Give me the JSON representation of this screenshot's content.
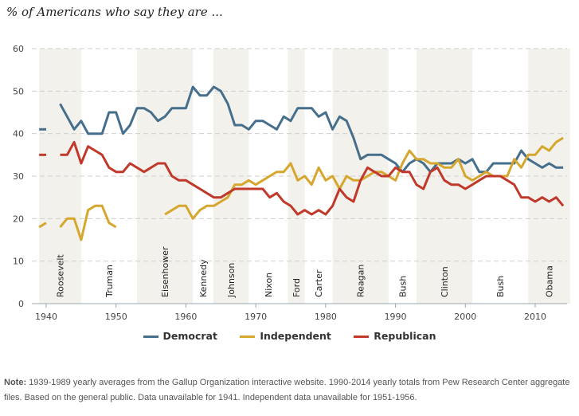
{
  "title": "% of Americans who say they are ...",
  "chart_data": {
    "type": "line",
    "title": "% of Americans who say they are ...",
    "xlabel": "",
    "ylabel": "",
    "xlim": [
      1938,
      2015
    ],
    "ylim": [
      0,
      60
    ],
    "yticks": [
      0,
      10,
      20,
      30,
      40,
      50,
      60
    ],
    "xticks": [
      1940,
      1950,
      1960,
      1970,
      1980,
      1990,
      2000,
      2010
    ],
    "grid": "horizontal-dashed",
    "legend_position": "bottom-center",
    "presidencies": [
      {
        "name": "Roosevelt",
        "start": 1939,
        "end": 1945,
        "shaded": true
      },
      {
        "name": "Truman",
        "start": 1945,
        "end": 1953,
        "shaded": false
      },
      {
        "name": "Eisenhower",
        "start": 1953,
        "end": 1961,
        "shaded": true
      },
      {
        "name": "Kennedy",
        "start": 1961,
        "end": 1963.9,
        "shaded": false
      },
      {
        "name": "Johnson",
        "start": 1963.9,
        "end": 1969,
        "shaded": true
      },
      {
        "name": "Nixon",
        "start": 1969,
        "end": 1974.6,
        "shaded": false
      },
      {
        "name": "Ford",
        "start": 1974.6,
        "end": 1977,
        "shaded": true
      },
      {
        "name": "Carter",
        "start": 1977,
        "end": 1981,
        "shaded": false
      },
      {
        "name": "Reagan",
        "start": 1981,
        "end": 1989,
        "shaded": true
      },
      {
        "name": "Bush",
        "start": 1989,
        "end": 1993,
        "shaded": false
      },
      {
        "name": "Clinton",
        "start": 1993,
        "end": 2001,
        "shaded": true
      },
      {
        "name": "Bush",
        "start": 2001,
        "end": 2009,
        "shaded": false
      },
      {
        "name": "Obama",
        "start": 2009,
        "end": 2015,
        "shaded": true
      }
    ],
    "series": [
      {
        "name": "Democrat",
        "color": "#466f8c",
        "points": [
          [
            1939,
            41
          ],
          [
            1940,
            41
          ],
          [
            1941,
            null
          ],
          [
            1942,
            47
          ],
          [
            1943,
            44
          ],
          [
            1944,
            41
          ],
          [
            1945,
            43
          ],
          [
            1946,
            40
          ],
          [
            1947,
            40
          ],
          [
            1948,
            40
          ],
          [
            1949,
            45
          ],
          [
            1950,
            45
          ],
          [
            1951,
            40
          ],
          [
            1952,
            42
          ],
          [
            1953,
            46
          ],
          [
            1954,
            46
          ],
          [
            1955,
            45
          ],
          [
            1956,
            43
          ],
          [
            1957,
            44
          ],
          [
            1958,
            46
          ],
          [
            1959,
            46
          ],
          [
            1960,
            46
          ],
          [
            1961,
            51
          ],
          [
            1962,
            49
          ],
          [
            1963,
            49
          ],
          [
            1964,
            51
          ],
          [
            1965,
            50
          ],
          [
            1966,
            47
          ],
          [
            1967,
            42
          ],
          [
            1968,
            42
          ],
          [
            1969,
            41
          ],
          [
            1970,
            43
          ],
          [
            1971,
            43
          ],
          [
            1972,
            42
          ],
          [
            1973,
            41
          ],
          [
            1974,
            44
          ],
          [
            1975,
            43
          ],
          [
            1976,
            46
          ],
          [
            1977,
            46
          ],
          [
            1978,
            46
          ],
          [
            1979,
            44
          ],
          [
            1980,
            45
          ],
          [
            1981,
            41
          ],
          [
            1982,
            44
          ],
          [
            1983,
            43
          ],
          [
            1984,
            39
          ],
          [
            1985,
            34
          ],
          [
            1986,
            35
          ],
          [
            1987,
            35
          ],
          [
            1988,
            35
          ],
          [
            1989,
            34
          ],
          [
            1990,
            33
          ],
          [
            1991,
            31
          ],
          [
            1992,
            33
          ],
          [
            1993,
            34
          ],
          [
            1994,
            33
          ],
          [
            1995,
            31
          ],
          [
            1996,
            33
          ],
          [
            1997,
            33
          ],
          [
            1998,
            33
          ],
          [
            1999,
            34
          ],
          [
            2000,
            33
          ],
          [
            2001,
            34
          ],
          [
            2002,
            31
          ],
          [
            2003,
            31
          ],
          [
            2004,
            33
          ],
          [
            2005,
            33
          ],
          [
            2006,
            33
          ],
          [
            2007,
            33
          ],
          [
            2008,
            36
          ],
          [
            2009,
            34
          ],
          [
            2010,
            33
          ],
          [
            2011,
            32
          ],
          [
            2012,
            33
          ],
          [
            2013,
            32
          ],
          [
            2014,
            32
          ]
        ]
      },
      {
        "name": "Independent",
        "color": "#d6a72e",
        "points": [
          [
            1939,
            18
          ],
          [
            1940,
            19
          ],
          [
            1941,
            null
          ],
          [
            1942,
            18
          ],
          [
            1943,
            20
          ],
          [
            1944,
            20
          ],
          [
            1945,
            15
          ],
          [
            1946,
            22
          ],
          [
            1947,
            23
          ],
          [
            1948,
            23
          ],
          [
            1949,
            19
          ],
          [
            1950,
            18
          ],
          [
            1951,
            null
          ],
          [
            1952,
            null
          ],
          [
            1953,
            null
          ],
          [
            1954,
            null
          ],
          [
            1955,
            null
          ],
          [
            1956,
            null
          ],
          [
            1957,
            21
          ],
          [
            1958,
            22
          ],
          [
            1959,
            23
          ],
          [
            1960,
            23
          ],
          [
            1961,
            20
          ],
          [
            1962,
            22
          ],
          [
            1963,
            23
          ],
          [
            1964,
            23
          ],
          [
            1965,
            24
          ],
          [
            1966,
            25
          ],
          [
            1967,
            28
          ],
          [
            1968,
            28
          ],
          [
            1969,
            29
          ],
          [
            1970,
            28
          ],
          [
            1971,
            29
          ],
          [
            1972,
            30
          ],
          [
            1973,
            31
          ],
          [
            1974,
            31
          ],
          [
            1975,
            33
          ],
          [
            1976,
            29
          ],
          [
            1977,
            30
          ],
          [
            1978,
            28
          ],
          [
            1979,
            32
          ],
          [
            1980,
            29
          ],
          [
            1981,
            30
          ],
          [
            1982,
            27
          ],
          [
            1983,
            30
          ],
          [
            1984,
            29
          ],
          [
            1985,
            29
          ],
          [
            1986,
            30
          ],
          [
            1987,
            31
          ],
          [
            1988,
            31
          ],
          [
            1989,
            30
          ],
          [
            1990,
            29
          ],
          [
            1991,
            33
          ],
          [
            1992,
            36
          ],
          [
            1993,
            34
          ],
          [
            1994,
            34
          ],
          [
            1995,
            33
          ],
          [
            1996,
            33
          ],
          [
            1997,
            32
          ],
          [
            1998,
            32
          ],
          [
            1999,
            34
          ],
          [
            2000,
            30
          ],
          [
            2001,
            29
          ],
          [
            2002,
            30
          ],
          [
            2003,
            31
          ],
          [
            2004,
            30
          ],
          [
            2005,
            30
          ],
          [
            2006,
            30
          ],
          [
            2007,
            34
          ],
          [
            2008,
            32
          ],
          [
            2009,
            35
          ],
          [
            2010,
            35
          ],
          [
            2011,
            37
          ],
          [
            2012,
            36
          ],
          [
            2013,
            38
          ],
          [
            2014,
            39
          ]
        ]
      },
      {
        "name": "Republican",
        "color": "#c0392b",
        "points": [
          [
            1939,
            35
          ],
          [
            1940,
            35
          ],
          [
            1941,
            null
          ],
          [
            1942,
            35
          ],
          [
            1943,
            35
          ],
          [
            1944,
            38
          ],
          [
            1945,
            33
          ],
          [
            1946,
            37
          ],
          [
            1947,
            36
          ],
          [
            1948,
            35
          ],
          [
            1949,
            32
          ],
          [
            1950,
            31
          ],
          [
            1951,
            31
          ],
          [
            1952,
            33
          ],
          [
            1953,
            32
          ],
          [
            1954,
            31
          ],
          [
            1955,
            32
          ],
          [
            1956,
            33
          ],
          [
            1957,
            33
          ],
          [
            1958,
            30
          ],
          [
            1959,
            29
          ],
          [
            1960,
            29
          ],
          [
            1961,
            28
          ],
          [
            1962,
            27
          ],
          [
            1963,
            26
          ],
          [
            1964,
            25
          ],
          [
            1965,
            25
          ],
          [
            1966,
            26
          ],
          [
            1967,
            27
          ],
          [
            1968,
            27
          ],
          [
            1969,
            27
          ],
          [
            1970,
            27
          ],
          [
            1971,
            27
          ],
          [
            1972,
            25
          ],
          [
            1973,
            26
          ],
          [
            1974,
            24
          ],
          [
            1975,
            23
          ],
          [
            1976,
            21
          ],
          [
            1977,
            22
          ],
          [
            1978,
            21
          ],
          [
            1979,
            22
          ],
          [
            1980,
            21
          ],
          [
            1981,
            23
          ],
          [
            1982,
            27
          ],
          [
            1983,
            25
          ],
          [
            1984,
            24
          ],
          [
            1985,
            29
          ],
          [
            1986,
            32
          ],
          [
            1987,
            31
          ],
          [
            1988,
            30
          ],
          [
            1989,
            30
          ],
          [
            1990,
            32
          ],
          [
            1991,
            31
          ],
          [
            1992,
            31
          ],
          [
            1993,
            28
          ],
          [
            1994,
            27
          ],
          [
            1995,
            31
          ],
          [
            1996,
            32
          ],
          [
            1997,
            29
          ],
          [
            1998,
            28
          ],
          [
            1999,
            28
          ],
          [
            2000,
            27
          ],
          [
            2001,
            28
          ],
          [
            2002,
            29
          ],
          [
            2003,
            30
          ],
          [
            2004,
            30
          ],
          [
            2005,
            30
          ],
          [
            2006,
            29
          ],
          [
            2007,
            28
          ],
          [
            2008,
            25
          ],
          [
            2009,
            25
          ],
          [
            2010,
            24
          ],
          [
            2011,
            25
          ],
          [
            2012,
            24
          ],
          [
            2013,
            25
          ],
          [
            2014,
            23
          ]
        ]
      }
    ]
  },
  "legend": [
    {
      "label": "Democrat",
      "color": "#466f8c"
    },
    {
      "label": "Independent",
      "color": "#d6a72e"
    },
    {
      "label": "Republican",
      "color": "#c0392b"
    }
  ],
  "note": {
    "label": "Note:",
    "text": " 1939-1989 yearly averages from the Gallup Organization interactive website. 1990-2014 yearly totals from Pew Research Center aggregate files. Based on the general public. Data unavailable for 1941. Independent data unavailable for 1951-1956."
  }
}
